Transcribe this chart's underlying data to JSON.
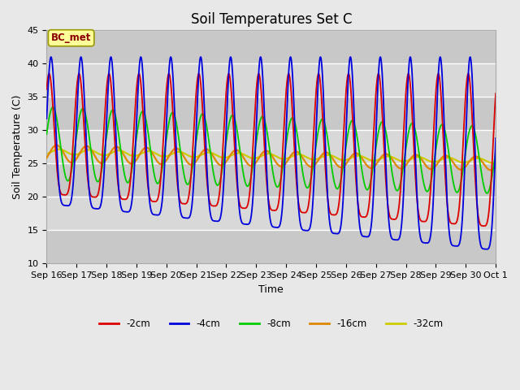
{
  "title": "Soil Temperatures Set C",
  "xlabel": "Time",
  "ylabel": "Soil Temperature (C)",
  "ylim": [
    10,
    45
  ],
  "annotation": "BC_met",
  "legend_labels": [
    "-2cm",
    "-4cm",
    "-8cm",
    "-16cm",
    "-32cm"
  ],
  "legend_colors": [
    "#dd0000",
    "#0000dd",
    "#00cc00",
    "#dd8800",
    "#cccc00"
  ],
  "xtick_labels": [
    "Sep 16",
    "Sep 17",
    "Sep 18",
    "Sep 19",
    "Sep 20",
    "Sep 21",
    "Sep 22",
    "Sep 23",
    "Sep 24",
    "Sep 25",
    "Sep 26",
    "Sep 27",
    "Sep 28",
    "Sep 29",
    "Sep 30",
    "Oct 1"
  ],
  "title_fontsize": 12,
  "axis_fontsize": 9,
  "tick_fontsize": 8,
  "grid_color": "#ffffff",
  "bg_color": "#d8d8d8",
  "fig_color": "#e8e8e8"
}
